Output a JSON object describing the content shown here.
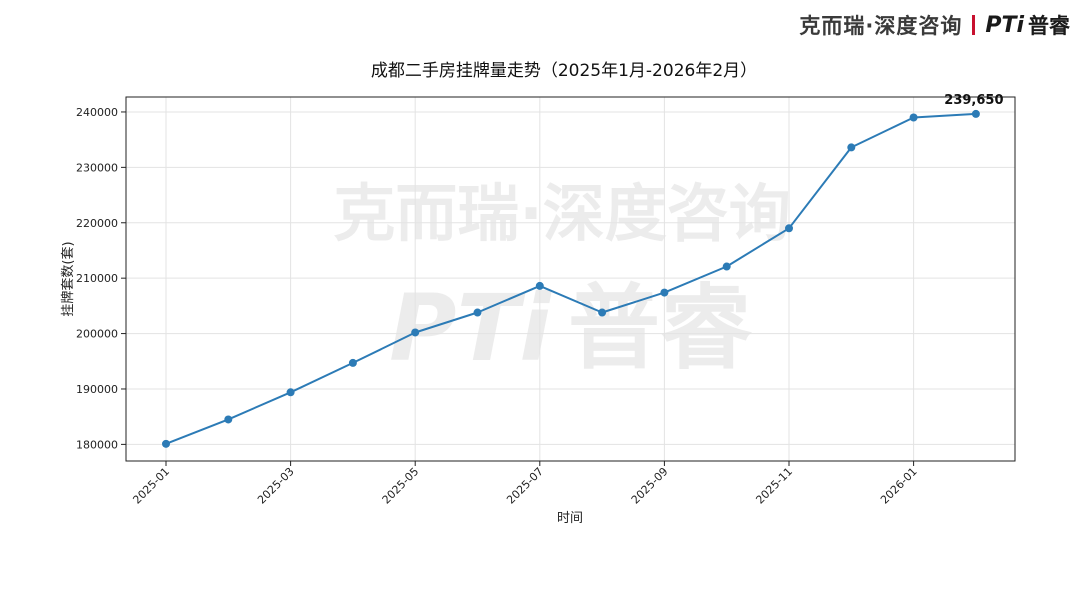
{
  "brand": {
    "name_cn": "克而瑞·深度咨询",
    "logo_text": "PTi",
    "logo_cn": "普睿"
  },
  "watermark": {
    "line1": "克而瑞·深度咨询",
    "line2_logo": "PTi",
    "line2_cn": "普睿"
  },
  "chart_data": {
    "type": "line",
    "title": "成都二手房挂牌量走势（2025年1月-2026年2月）",
    "xlabel": "时间",
    "ylabel": "挂牌套数(套)",
    "x": [
      "2025-01",
      "2025-02",
      "2025-03",
      "2025-04",
      "2025-05",
      "2025-06",
      "2025-07",
      "2025-08",
      "2025-09",
      "2025-10",
      "2025-11",
      "2025-12",
      "2026-01",
      "2026-02"
    ],
    "x_tick_labels": [
      "2025-01",
      "2025-03",
      "2025-05",
      "2025-07",
      "2025-09",
      "2025-11",
      "2026-01"
    ],
    "series": [
      {
        "values": [
          180100,
          184500,
          189400,
          194700,
          200200,
          203800,
          208600,
          203800,
          207400,
          212100,
          219000,
          233600,
          239000,
          239650
        ],
        "color": "#2c7bb6"
      }
    ],
    "ylim": [
      177000,
      242700
    ],
    "y_ticks": [
      180000,
      190000,
      200000,
      210000,
      220000,
      230000,
      240000
    ],
    "annotations": [
      {
        "x": "2026-02",
        "text": "239,650"
      }
    ],
    "grid": true
  }
}
